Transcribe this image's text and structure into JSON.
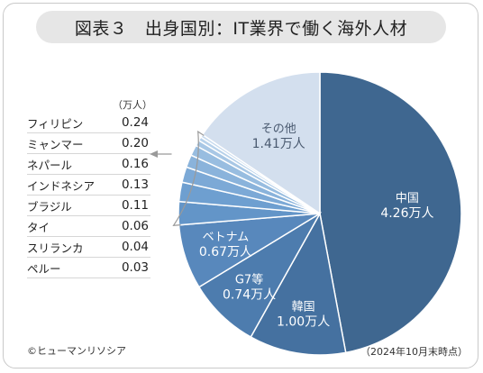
{
  "title": "図表３　出身国別：IT業界で働く海外人材",
  "unit_label": "（万人）",
  "copyright": "©ヒューマンリソシア",
  "note": "（2024年10月末時点）",
  "chart_data": {
    "type": "pie",
    "title": "図表３　出身国別：IT業界で働く海外人材",
    "unit": "万人",
    "slices": [
      {
        "name": "中国",
        "value": 4.26,
        "label": "4.26万人",
        "color": "#3f6790"
      },
      {
        "name": "韓国",
        "value": 1.0,
        "label": "1.00万人",
        "color": "#4571a0"
      },
      {
        "name": "G7等",
        "value": 0.74,
        "label": "0.74万人",
        "color": "#4d7cae"
      },
      {
        "name": "ベトナム",
        "value": 0.67,
        "label": "0.67万人",
        "color": "#5888bc"
      },
      {
        "name": "フィリピン",
        "value": 0.24,
        "color": "#6395c8"
      },
      {
        "name": "ミャンマー",
        "value": 0.2,
        "color": "#6e9fd0"
      },
      {
        "name": "ネパール",
        "value": 0.16,
        "color": "#7ca9d6"
      },
      {
        "name": "インドネシア",
        "value": 0.13,
        "color": "#8ab3db"
      },
      {
        "name": "ブラジル",
        "value": 0.11,
        "color": "#98bde0"
      },
      {
        "name": "タイ",
        "value": 0.06,
        "color": "#a8c7e5"
      },
      {
        "name": "スリランカ",
        "value": 0.04,
        "color": "#b7d1ea"
      },
      {
        "name": "ペルー",
        "value": 0.03,
        "color": "#c6daee"
      },
      {
        "name": "その他",
        "value": 1.41,
        "label": "1.41万人",
        "color": "#d3dfee"
      }
    ],
    "legend_table": [
      {
        "name": "フィリピン",
        "value": "0.24"
      },
      {
        "name": "ミャンマー",
        "value": "0.20"
      },
      {
        "name": "ネパール",
        "value": "0.16"
      },
      {
        "name": "インドネシア",
        "value": "0.13"
      },
      {
        "name": "ブラジル",
        "value": "0.11"
      },
      {
        "name": "タイ",
        "value": "0.06"
      },
      {
        "name": "スリランカ",
        "value": "0.04"
      },
      {
        "name": "ペルー",
        "value": "0.03"
      }
    ]
  }
}
